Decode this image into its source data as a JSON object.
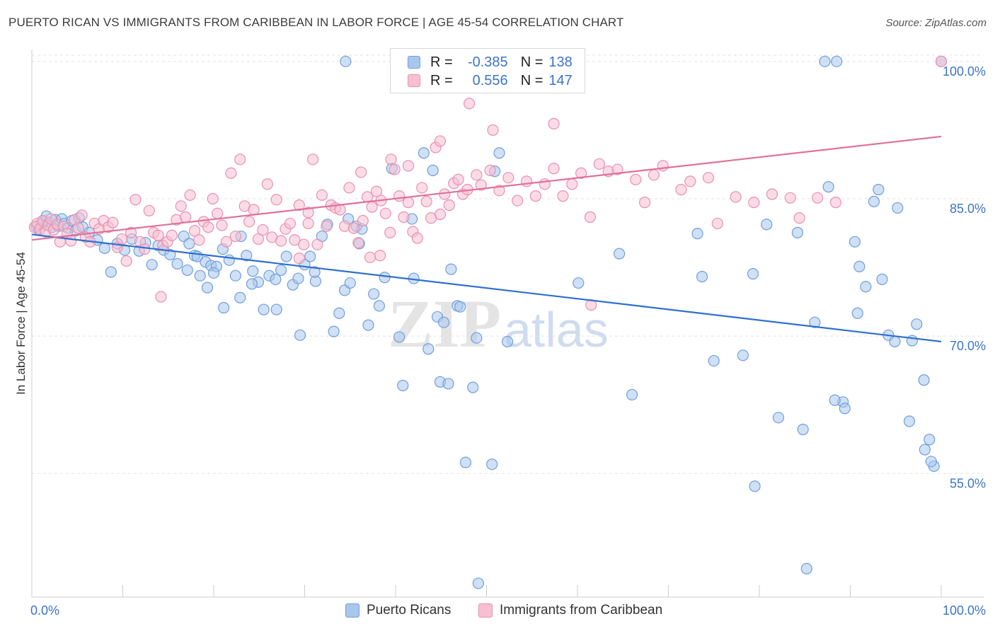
{
  "header": {
    "title": "PUERTO RICAN VS IMMIGRANTS FROM CARIBBEAN IN LABOR FORCE | AGE 45-54 CORRELATION CHART",
    "source": "Source: ZipAtlas.com"
  },
  "watermark": {
    "zip": "ZIP",
    "atlas": "atlas"
  },
  "stats_legend": [
    {
      "r_label": "R =",
      "r_value": "-0.385",
      "n_label": "N =",
      "n_value": "138",
      "color": "#a9c6ec",
      "border": "#6e9fdd"
    },
    {
      "r_label": "R =",
      "r_value": "0.556",
      "n_label": "N =",
      "n_value": "147",
      "color": "#f7bfd2",
      "border": "#e890ad"
    }
  ],
  "bottom_legend": [
    {
      "label": "Puerto Ricans",
      "color": "#a9c6ec",
      "border": "#6e9fdd"
    },
    {
      "label": "Immigrants from Caribbean",
      "color": "#f7bfd2",
      "border": "#e890ad"
    }
  ],
  "chart_data": {
    "type": "scatter",
    "title": "PUERTO RICAN VS IMMIGRANTS FROM CARIBBEAN IN LABOR FORCE | AGE 45-54 CORRELATION CHART",
    "xlabel": "",
    "ylabel": "In Labor Force | Age 45-54",
    "xlim": [
      0,
      100
    ],
    "ylim": [
      41.5,
      101.3
    ],
    "x_tick_labels": [
      "0.0%",
      "100.0%"
    ],
    "y_ticks": [
      55,
      70,
      85,
      100
    ],
    "y_tick_labels": [
      "55.0%",
      "70.0%",
      "85.0%",
      "100.0%"
    ],
    "grid": "horizontal-dashed",
    "series": [
      {
        "name": "Puerto Ricans",
        "color": "#6e9fdd",
        "fill": "#a9c6ec",
        "trend": {
          "x": [
            0,
            100
          ],
          "y": [
            81.1,
            69.4
          ],
          "color": "#2f6fd0"
        },
        "points": [
          [
            0.5,
            82.0
          ],
          [
            0.8,
            81.6
          ],
          [
            1.0,
            82.2
          ],
          [
            1.3,
            82.5
          ],
          [
            1.6,
            83.1
          ],
          [
            1.9,
            82.4
          ],
          [
            2.2,
            81.9
          ],
          [
            2.6,
            82.7
          ],
          [
            2.9,
            82.0
          ],
          [
            3.3,
            82.8
          ],
          [
            3.6,
            82.3
          ],
          [
            4.0,
            81.8
          ],
          [
            4.4,
            82.6
          ],
          [
            4.8,
            81.5
          ],
          [
            5.2,
            82.9
          ],
          [
            5.6,
            81.9
          ],
          [
            6.3,
            81.3
          ],
          [
            7.2,
            80.5
          ],
          [
            8.0,
            79.6
          ],
          [
            8.7,
            77.0
          ],
          [
            9.4,
            80.1
          ],
          [
            10.2,
            79.4
          ],
          [
            11.0,
            80.6
          ],
          [
            11.8,
            79.3
          ],
          [
            12.5,
            80.2
          ],
          [
            13.2,
            77.8
          ],
          [
            13.9,
            79.9
          ],
          [
            14.5,
            79.4
          ],
          [
            15.2,
            78.9
          ],
          [
            16.0,
            77.9
          ],
          [
            16.7,
            80.9
          ],
          [
            17.3,
            80.1
          ],
          [
            17.9,
            78.8
          ],
          [
            18.5,
            76.6
          ],
          [
            19.1,
            78.1
          ],
          [
            19.7,
            77.7
          ],
          [
            20.3,
            77.6
          ],
          [
            21.0,
            79.5
          ],
          [
            21.7,
            78.3
          ],
          [
            22.4,
            76.6
          ],
          [
            23.0,
            80.9
          ],
          [
            23.6,
            78.8
          ],
          [
            24.3,
            77.1
          ],
          [
            24.9,
            75.9
          ],
          [
            25.5,
            72.9
          ],
          [
            26.1,
            76.6
          ],
          [
            26.8,
            76.2
          ],
          [
            27.4,
            77.2
          ],
          [
            28.0,
            78.7
          ],
          [
            28.7,
            75.6
          ],
          [
            29.3,
            76.3
          ],
          [
            30.0,
            77.8
          ],
          [
            30.6,
            78.7
          ],
          [
            31.2,
            76.0
          ],
          [
            31.9,
            80.9
          ],
          [
            32.5,
            82.2
          ],
          [
            33.2,
            70.5
          ],
          [
            33.8,
            72.5
          ],
          [
            34.4,
            75.0
          ],
          [
            35.0,
            75.8
          ],
          [
            35.7,
            82.0
          ],
          [
            36.3,
            81.7
          ],
          [
            37.0,
            71.2
          ],
          [
            37.6,
            74.6
          ],
          [
            38.2,
            73.3
          ],
          [
            38.8,
            76.4
          ],
          [
            34.5,
            100.0
          ],
          [
            36.0,
            80.1
          ],
          [
            34.8,
            82.8
          ],
          [
            39.6,
            88.3
          ],
          [
            40.4,
            69.9
          ],
          [
            40.8,
            64.6
          ],
          [
            41.8,
            82.8
          ],
          [
            43.1,
            90.0
          ],
          [
            43.6,
            68.6
          ],
          [
            44.1,
            88.1
          ],
          [
            44.6,
            72.1
          ],
          [
            44.9,
            65.0
          ],
          [
            45.3,
            71.5
          ],
          [
            45.8,
            64.8
          ],
          [
            46.1,
            77.3
          ],
          [
            46.8,
            73.3
          ],
          [
            47.7,
            56.2
          ],
          [
            48.5,
            64.4
          ],
          [
            48.9,
            69.8
          ],
          [
            49.1,
            43.0
          ],
          [
            50.6,
            56.0
          ],
          [
            50.9,
            88.0
          ],
          [
            51.4,
            90.0
          ],
          [
            52.3,
            69.4
          ],
          [
            60.1,
            75.8
          ],
          [
            64.6,
            79.0
          ],
          [
            66.0,
            63.6
          ],
          [
            73.2,
            81.2
          ],
          [
            73.7,
            76.5
          ],
          [
            75.0,
            67.3
          ],
          [
            84.8,
            59.8
          ],
          [
            85.2,
            44.6
          ],
          [
            87.6,
            86.3
          ],
          [
            88.5,
            100.0
          ],
          [
            89.2,
            62.8
          ],
          [
            90.8,
            72.5
          ],
          [
            91.7,
            75.4
          ],
          [
            92.6,
            84.7
          ],
          [
            93.1,
            86.0
          ],
          [
            94.2,
            70.1
          ],
          [
            95.2,
            84.0
          ],
          [
            96.5,
            60.7
          ],
          [
            97.3,
            71.3
          ],
          [
            98.1,
            65.2
          ],
          [
            98.7,
            58.7
          ],
          [
            99.2,
            55.8
          ],
          [
            100.0,
            100.0
          ],
          [
            87.2,
            100.0
          ],
          [
            84.2,
            81.3
          ],
          [
            90.5,
            80.3
          ],
          [
            93.5,
            76.2
          ],
          [
            86.1,
            71.5
          ],
          [
            88.3,
            63.0
          ],
          [
            89.4,
            62.1
          ],
          [
            91.0,
            77.6
          ],
          [
            94.9,
            69.4
          ],
          [
            96.8,
            69.5
          ],
          [
            98.2,
            57.6
          ],
          [
            98.9,
            56.3
          ],
          [
            79.5,
            53.6
          ],
          [
            79.3,
            76.8
          ],
          [
            82.1,
            61.1
          ],
          [
            78.2,
            67.9
          ],
          [
            80.8,
            82.2
          ],
          [
            42.0,
            76.3
          ],
          [
            47.1,
            73.2
          ],
          [
            26.9,
            72.9
          ],
          [
            29.5,
            70.1
          ],
          [
            31.1,
            77.0
          ],
          [
            24.2,
            75.7
          ],
          [
            22.9,
            74.2
          ],
          [
            21.1,
            73.1
          ],
          [
            20.0,
            76.9
          ],
          [
            19.3,
            75.3
          ],
          [
            18.2,
            78.7
          ],
          [
            17.1,
            77.2
          ]
        ]
      },
      {
        "name": "Immigrants from Caribbean",
        "color": "#e890ad",
        "fill": "#f7bfd2",
        "trend": {
          "x": [
            0,
            100
          ],
          "y": [
            80.5,
            91.8
          ],
          "color": "#e0709a"
        },
        "points": [
          [
            0.3,
            81.9
          ],
          [
            0.6,
            82.3
          ],
          [
            0.9,
            81.7
          ],
          [
            1.2,
            82.6
          ],
          [
            1.5,
            81.4
          ],
          [
            1.8,
            82.1
          ],
          [
            2.1,
            82.8
          ],
          [
            2.4,
            81.6
          ],
          [
            2.8,
            82.2
          ],
          [
            3.1,
            80.3
          ],
          [
            3.5,
            82.0
          ],
          [
            3.9,
            81.2
          ],
          [
            4.3,
            80.4
          ],
          [
            4.7,
            82.7
          ],
          [
            5.1,
            81.8
          ],
          [
            5.5,
            83.2
          ],
          [
            5.9,
            80.8
          ],
          [
            6.4,
            80.3
          ],
          [
            6.9,
            82.3
          ],
          [
            7.4,
            81.7
          ],
          [
            7.9,
            82.6
          ],
          [
            8.4,
            81.9
          ],
          [
            8.9,
            82.4
          ],
          [
            9.4,
            79.7
          ],
          [
            9.9,
            80.6
          ],
          [
            10.4,
            78.2
          ],
          [
            10.9,
            81.3
          ],
          [
            11.4,
            84.9
          ],
          [
            11.9,
            80.3
          ],
          [
            12.4,
            79.5
          ],
          [
            12.9,
            83.7
          ],
          [
            13.4,
            81.3
          ],
          [
            13.9,
            81.0
          ],
          [
            14.4,
            79.9
          ],
          [
            14.9,
            80.3
          ],
          [
            15.4,
            81.0
          ],
          [
            15.9,
            82.7
          ],
          [
            16.4,
            84.2
          ],
          [
            16.9,
            83.0
          ],
          [
            17.4,
            85.4
          ],
          [
            17.9,
            81.5
          ],
          [
            18.4,
            80.5
          ],
          [
            18.9,
            82.5
          ],
          [
            19.4,
            81.9
          ],
          [
            19.9,
            85.0
          ],
          [
            20.4,
            83.4
          ],
          [
            20.9,
            82.1
          ],
          [
            21.4,
            80.3
          ],
          [
            21.9,
            87.8
          ],
          [
            22.4,
            80.9
          ],
          [
            22.9,
            89.3
          ],
          [
            23.4,
            84.2
          ],
          [
            23.9,
            82.5
          ],
          [
            24.4,
            83.8
          ],
          [
            24.9,
            80.6
          ],
          [
            25.4,
            81.6
          ],
          [
            25.9,
            86.6
          ],
          [
            26.4,
            80.8
          ],
          [
            26.9,
            84.9
          ],
          [
            27.4,
            80.4
          ],
          [
            27.9,
            81.7
          ],
          [
            28.4,
            82.3
          ],
          [
            28.9,
            80.5
          ],
          [
            29.4,
            84.3
          ],
          [
            29.9,
            80.0
          ],
          [
            30.4,
            83.5
          ],
          [
            30.9,
            89.3
          ],
          [
            31.4,
            80.0
          ],
          [
            31.9,
            85.4
          ],
          [
            32.4,
            82.0
          ],
          [
            32.9,
            84.3
          ],
          [
            33.4,
            84.0
          ],
          [
            33.9,
            83.8
          ],
          [
            34.4,
            82.0
          ],
          [
            34.9,
            86.2
          ],
          [
            35.4,
            81.8
          ],
          [
            35.9,
            80.2
          ],
          [
            36.4,
            82.6
          ],
          [
            36.9,
            85.2
          ],
          [
            37.4,
            84.1
          ],
          [
            37.9,
            85.8
          ],
          [
            38.4,
            84.8
          ],
          [
            38.9,
            83.4
          ],
          [
            39.4,
            81.3
          ],
          [
            39.9,
            88.2
          ],
          [
            40.4,
            85.3
          ],
          [
            40.9,
            83.0
          ],
          [
            41.4,
            84.6
          ],
          [
            41.9,
            81.4
          ],
          [
            42.4,
            80.7
          ],
          [
            42.9,
            86.2
          ],
          [
            43.4,
            84.7
          ],
          [
            43.9,
            82.9
          ],
          [
            44.4,
            90.6
          ],
          [
            44.9,
            83.3
          ],
          [
            45.4,
            85.5
          ],
          [
            45.9,
            84.3
          ],
          [
            46.4,
            86.7
          ],
          [
            46.9,
            87.1
          ],
          [
            47.4,
            85.5
          ],
          [
            47.9,
            86.0
          ],
          [
            48.9,
            87.6
          ],
          [
            49.4,
            86.5
          ],
          [
            50.4,
            88.1
          ],
          [
            51.4,
            85.9
          ],
          [
            52.4,
            87.3
          ],
          [
            53.4,
            84.8
          ],
          [
            54.4,
            86.9
          ],
          [
            55.4,
            85.3
          ],
          [
            56.4,
            86.6
          ],
          [
            57.4,
            88.3
          ],
          [
            58.4,
            85.3
          ],
          [
            59.4,
            86.6
          ],
          [
            60.4,
            87.8
          ],
          [
            61.4,
            83.0
          ],
          [
            62.4,
            88.8
          ],
          [
            63.4,
            88.0
          ],
          [
            64.4,
            88.2
          ],
          [
            66.4,
            87.1
          ],
          [
            67.4,
            84.6
          ],
          [
            68.4,
            87.6
          ],
          [
            69.4,
            88.6
          ],
          [
            71.4,
            86.0
          ],
          [
            72.4,
            86.9
          ],
          [
            74.4,
            87.3
          ],
          [
            75.4,
            82.3
          ],
          [
            77.4,
            85.2
          ],
          [
            79.4,
            84.6
          ],
          [
            81.4,
            85.5
          ],
          [
            83.4,
            85.1
          ],
          [
            84.4,
            82.9
          ],
          [
            86.4,
            85.1
          ],
          [
            88.4,
            84.6
          ],
          [
            57.4,
            93.2
          ],
          [
            61.5,
            73.4
          ],
          [
            14.2,
            74.3
          ],
          [
            29.4,
            78.5
          ],
          [
            30.4,
            82.3
          ],
          [
            37.2,
            78.6
          ],
          [
            38.3,
            78.8
          ],
          [
            100.0,
            100.0
          ],
          [
            48.1,
            95.4
          ],
          [
            50.7,
            92.5
          ],
          [
            44.9,
            91.3
          ],
          [
            39.5,
            89.3
          ],
          [
            41.4,
            88.6
          ],
          [
            36.2,
            87.9
          ]
        ]
      }
    ]
  }
}
